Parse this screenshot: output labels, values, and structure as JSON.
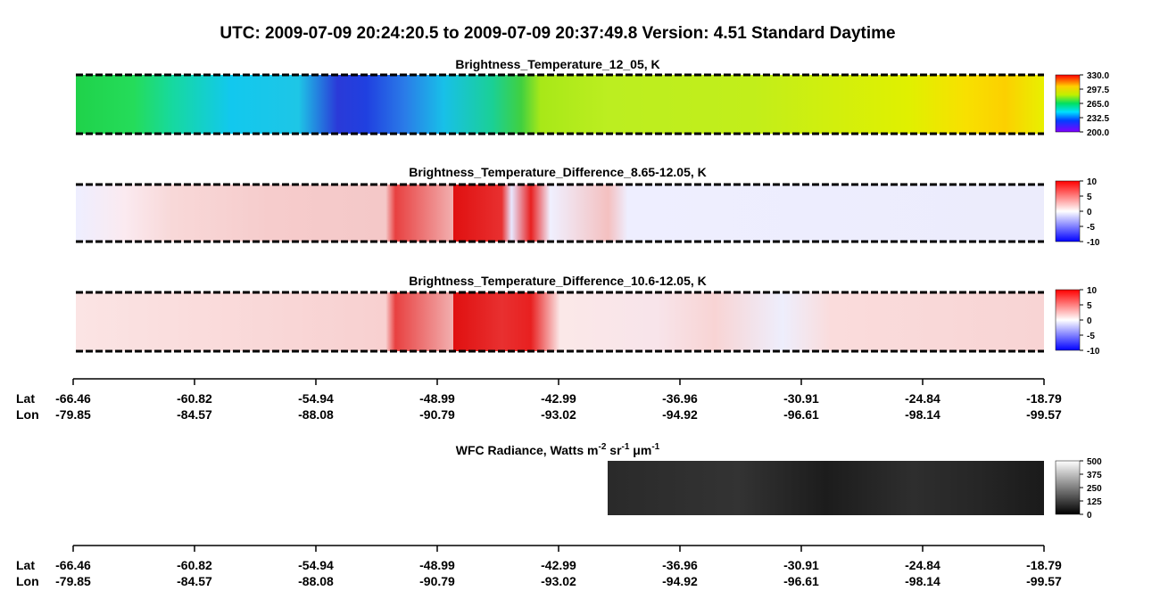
{
  "header": {
    "title": "UTC:  2009-07-09   20:24:20.5  to  2009-07-09   20:37:49.8    Version: 4.51  Standard Daytime"
  },
  "panels": [
    {
      "title": "Brightness_Temperature_12_05, K",
      "colorbar_ticks": [
        "330.0",
        "297.5",
        "265.0",
        "232.5",
        "200.0"
      ]
    },
    {
      "title": "Brightness_Temperature_Difference_8.65-12.05, K",
      "colorbar_ticks": [
        "10",
        "5",
        "0",
        "-5",
        "-10"
      ]
    },
    {
      "title": "Brightness_Temperature_Difference_10.6-12.05, K",
      "colorbar_ticks": [
        "10",
        "5",
        "0",
        "-5",
        "-10"
      ]
    },
    {
      "title_parts": [
        "WFC Radiance, Watts m",
        "-2",
        " sr",
        "-1",
        " μm",
        "-1"
      ],
      "colorbar_ticks": [
        "500",
        "375",
        "250",
        "125",
        "0"
      ]
    }
  ],
  "axes": [
    {
      "lat_label": "Lat",
      "lon_label": "Lon",
      "lat": [
        "-66.46",
        "-60.82",
        "-54.94",
        "-48.99",
        "-42.99",
        "-36.96",
        "-30.91",
        "-24.84",
        "-18.79"
      ],
      "lon": [
        "-79.85",
        "-84.57",
        "-88.08",
        "-90.79",
        "-93.02",
        "-94.92",
        "-96.61",
        "-98.14",
        "-99.57"
      ]
    },
    {
      "lat_label": "Lat",
      "lon_label": "Lon",
      "lat": [
        "-66.46",
        "-60.82",
        "-54.94",
        "-48.99",
        "-42.99",
        "-36.96",
        "-30.91",
        "-24.84",
        "-18.79"
      ],
      "lon": [
        "-79.85",
        "-84.57",
        "-88.08",
        "-90.79",
        "-93.02",
        "-94.92",
        "-96.61",
        "-98.14",
        "-99.57"
      ]
    }
  ]
}
